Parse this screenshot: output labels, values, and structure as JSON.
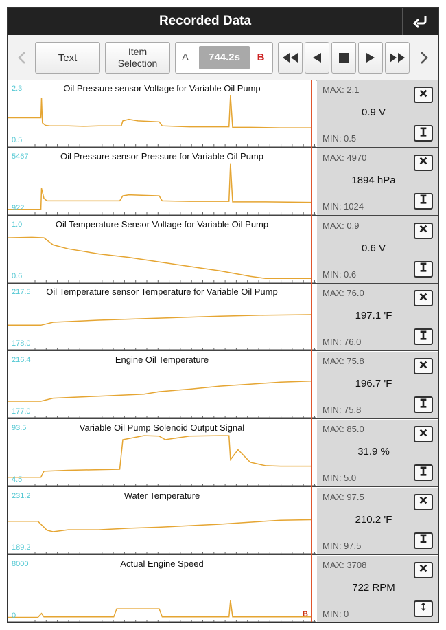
{
  "header": {
    "title": "Recorded Data",
    "back_icon": "return-arrow-icon"
  },
  "toolbar": {
    "text_label": "Text",
    "item_selection_line1": "Item",
    "item_selection_line2": "Selection",
    "a_label": "A",
    "time_value": "744.2s",
    "b_label": "B"
  },
  "cursor_marker": "B",
  "colors": {
    "trace": "#e5a532",
    "scale": "#53c8d3",
    "cursor": "#e0552e",
    "side_bg": "#d9d9d9",
    "titlebar": "#222222"
  },
  "panels": [
    {
      "title": "Oil Pressure sensor Voltage for Variable Oil Pump",
      "ymax": "2.3",
      "ymin": "0.5",
      "max": "MAX: 2.1",
      "value": "0.9 V",
      "min": "MIN: 0.5",
      "bottom_icon": "i-beam-icon",
      "trace": [
        [
          0,
          0.5
        ],
        [
          0.1,
          0.5
        ],
        [
          0.101,
          0.5
        ],
        [
          0.11,
          0.5
        ],
        [
          0.112,
          0.9
        ],
        [
          0.115,
          0.4
        ],
        [
          0.125,
          0.35
        ],
        [
          0.14,
          0.34
        ],
        [
          0.2,
          0.34
        ],
        [
          0.25,
          0.33
        ],
        [
          0.3,
          0.34
        ],
        [
          0.36,
          0.34
        ],
        [
          0.375,
          0.34
        ],
        [
          0.38,
          0.44
        ],
        [
          0.4,
          0.47
        ],
        [
          0.43,
          0.44
        ],
        [
          0.5,
          0.42
        ],
        [
          0.51,
          0.34
        ],
        [
          0.55,
          0.33
        ],
        [
          0.6,
          0.32
        ],
        [
          0.7,
          0.32
        ],
        [
          0.73,
          0.32
        ],
        [
          0.735,
          0.95
        ],
        [
          0.742,
          0.31
        ],
        [
          0.8,
          0.31
        ],
        [
          0.9,
          0.3
        ],
        [
          1.0,
          0.3
        ]
      ]
    },
    {
      "title": "Oil Pressure sensor Pressure for Variable Oil Pump",
      "ymax": "5467",
      "ymin": "922",
      "max": "MAX: 4970",
      "value": "1894 hPa",
      "min": "MIN: 1024",
      "bottom_icon": "i-beam-icon",
      "trace": [
        [
          0,
          0.03
        ],
        [
          0.11,
          0.03
        ],
        [
          0.112,
          0.45
        ],
        [
          0.12,
          0.25
        ],
        [
          0.13,
          0.2
        ],
        [
          0.2,
          0.2
        ],
        [
          0.3,
          0.2
        ],
        [
          0.37,
          0.2
        ],
        [
          0.38,
          0.3
        ],
        [
          0.4,
          0.32
        ],
        [
          0.5,
          0.3
        ],
        [
          0.51,
          0.2
        ],
        [
          0.6,
          0.19
        ],
        [
          0.73,
          0.19
        ],
        [
          0.735,
          0.95
        ],
        [
          0.742,
          0.18
        ],
        [
          0.85,
          0.18
        ],
        [
          1.0,
          0.17
        ]
      ]
    },
    {
      "title": "Oil Temperature Sensor Voltage for Variable Oil Pump",
      "ymax": "1.0",
      "ymin": "0.6",
      "max": "MAX: 0.9",
      "value": "0.6 V",
      "min": "MIN: 0.6",
      "bottom_icon": "i-beam-icon",
      "trace": [
        [
          0,
          0.82
        ],
        [
          0.08,
          0.83
        ],
        [
          0.12,
          0.82
        ],
        [
          0.15,
          0.68
        ],
        [
          0.2,
          0.6
        ],
        [
          0.3,
          0.5
        ],
        [
          0.4,
          0.43
        ],
        [
          0.5,
          0.34
        ],
        [
          0.6,
          0.25
        ],
        [
          0.7,
          0.16
        ],
        [
          0.8,
          0.05
        ],
        [
          0.85,
          0.01
        ],
        [
          0.9,
          0.01
        ],
        [
          1.0,
          0.01
        ]
      ]
    },
    {
      "title": "Oil Temperature sensor Temperature for Variable Oil Pump",
      "ymax": "217.5",
      "ymin": "178.0",
      "max": "MAX: 76.0",
      "value": "197.1 'F",
      "min": "MIN: 76.0",
      "bottom_icon": "i-beam-icon",
      "trace": [
        [
          0,
          0.42
        ],
        [
          0.11,
          0.42
        ],
        [
          0.15,
          0.48
        ],
        [
          0.3,
          0.52
        ],
        [
          0.5,
          0.56
        ],
        [
          0.7,
          0.6
        ],
        [
          0.85,
          0.62
        ],
        [
          1.0,
          0.63
        ]
      ]
    },
    {
      "title": "Engine Oil Temperature",
      "ymax": "216.4",
      "ymin": "177.0",
      "max": "MAX: 75.8",
      "value": "196.7 'F",
      "min": "MIN: 75.8",
      "bottom_icon": "i-beam-icon",
      "trace": [
        [
          0,
          0.26
        ],
        [
          0.11,
          0.26
        ],
        [
          0.15,
          0.32
        ],
        [
          0.3,
          0.36
        ],
        [
          0.45,
          0.4
        ],
        [
          0.5,
          0.45
        ],
        [
          0.6,
          0.5
        ],
        [
          0.7,
          0.56
        ],
        [
          0.8,
          0.6
        ],
        [
          0.9,
          0.64
        ],
        [
          1.0,
          0.66
        ]
      ]
    },
    {
      "title": "Variable Oil Pump Solenoid Output Signal",
      "ymax": "93.5",
      "ymin": "4.5",
      "max": "MAX: 85.0",
      "value": "31.9 %",
      "min": "MIN: 5.0",
      "bottom_icon": "i-beam-icon",
      "trace": [
        [
          0,
          0.1
        ],
        [
          0.11,
          0.1
        ],
        [
          0.12,
          0.22
        ],
        [
          0.2,
          0.24
        ],
        [
          0.37,
          0.26
        ],
        [
          0.38,
          0.85
        ],
        [
          0.45,
          0.93
        ],
        [
          0.5,
          0.92
        ],
        [
          0.52,
          0.85
        ],
        [
          0.6,
          0.92
        ],
        [
          0.7,
          0.93
        ],
        [
          0.73,
          0.93
        ],
        [
          0.735,
          0.45
        ],
        [
          0.76,
          0.65
        ],
        [
          0.8,
          0.4
        ],
        [
          0.85,
          0.33
        ],
        [
          0.9,
          0.32
        ],
        [
          1.0,
          0.32
        ]
      ]
    },
    {
      "title": "Water Temperature",
      "ymax": "231.2",
      "ymin": "189.2",
      "max": "MAX: 97.5",
      "value": "210.2 'F",
      "min": "MIN: 97.5",
      "bottom_icon": "i-beam-icon",
      "trace": [
        [
          0,
          0.58
        ],
        [
          0.1,
          0.58
        ],
        [
          0.13,
          0.4
        ],
        [
          0.15,
          0.37
        ],
        [
          0.2,
          0.41
        ],
        [
          0.3,
          0.41
        ],
        [
          0.4,
          0.44
        ],
        [
          0.5,
          0.46
        ],
        [
          0.7,
          0.52
        ],
        [
          0.8,
          0.56
        ],
        [
          0.9,
          0.6
        ],
        [
          1.0,
          0.61
        ]
      ]
    },
    {
      "title": "Actual Engine Speed",
      "ymax": "8000",
      "ymin": "0",
      "max": "MAX: 3708",
      "value": "722 RPM",
      "min": "MIN: 0",
      "bottom_icon": "up-down-arrow-icon",
      "trace": [
        [
          0,
          0.02
        ],
        [
          0.1,
          0.02
        ],
        [
          0.112,
          0.1
        ],
        [
          0.12,
          0.03
        ],
        [
          0.35,
          0.03
        ],
        [
          0.36,
          0.19
        ],
        [
          0.5,
          0.19
        ],
        [
          0.51,
          0.03
        ],
        [
          0.73,
          0.03
        ],
        [
          0.735,
          0.36
        ],
        [
          0.742,
          0.03
        ],
        [
          1.0,
          0.03
        ]
      ]
    }
  ]
}
